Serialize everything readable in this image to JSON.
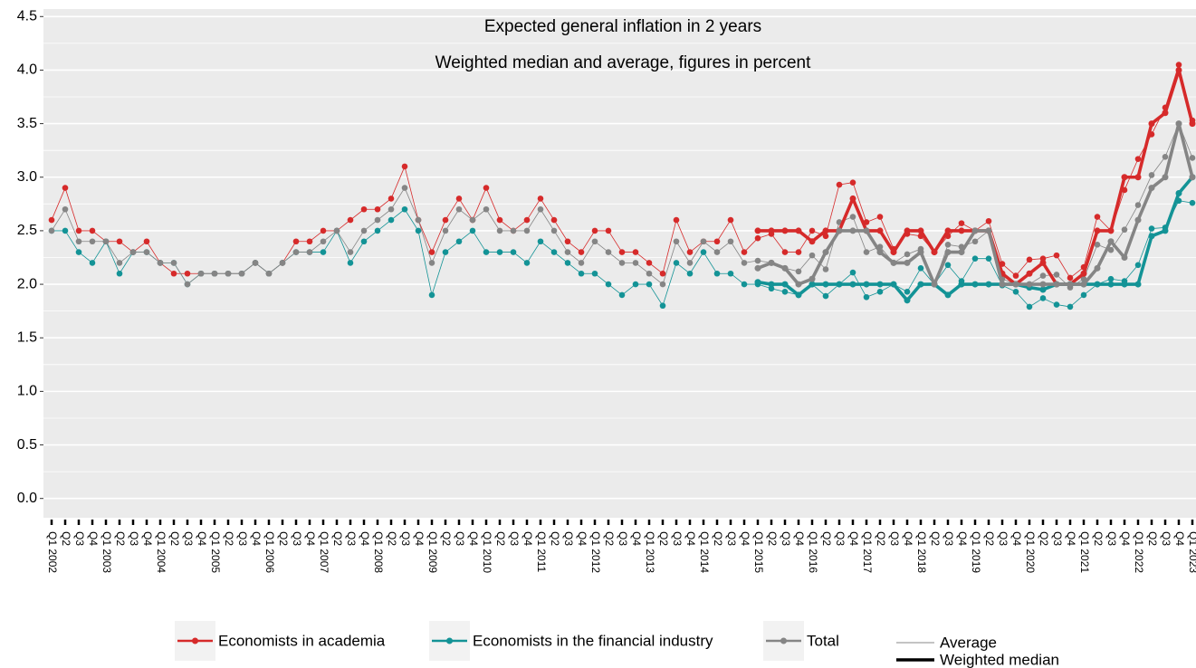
{
  "chart_data": {
    "type": "line",
    "title": "Expected general inflation in 2 years",
    "subtitle": "Weighted median and average, figures in percent",
    "categories": [
      "Q1 2002",
      "Q2",
      "Q3",
      "Q4",
      "Q1 2003",
      "Q2",
      "Q3",
      "Q4",
      "Q1 2004",
      "Q2",
      "Q3",
      "Q4",
      "Q1 2005",
      "Q2",
      "Q3",
      "Q4",
      "Q1 2006",
      "Q2",
      "Q3",
      "Q4",
      "Q1 2007",
      "Q2",
      "Q3",
      "Q4",
      "Q1 2008",
      "Q2",
      "Q3",
      "Q4",
      "Q1 2009",
      "Q2",
      "Q3",
      "Q4",
      "Q1 2010",
      "Q2",
      "Q3",
      "Q4",
      "Q1 2011",
      "Q2",
      "Q3",
      "Q4",
      "Q1 2012",
      "Q2",
      "Q3",
      "Q4",
      "Q1 2013",
      "Q2",
      "Q3",
      "Q4",
      "Q1 2014",
      "Q2",
      "Q3",
      "Q4",
      "Q1 2015",
      "Q2",
      "Q3",
      "Q4",
      "Q1 2016",
      "Q2",
      "Q3",
      "Q4",
      "Q1 2017",
      "Q2",
      "Q3",
      "Q4",
      "Q1 2018",
      "Q2",
      "Q3",
      "Q4",
      "Q1 2019",
      "Q2",
      "Q3",
      "Q4",
      "Q1 2020",
      "Q2",
      "Q3",
      "Q4",
      "Q1 2021",
      "Q2",
      "Q3",
      "Q4",
      "Q1 2022",
      "Q2",
      "Q3",
      "Q4",
      "Q1 2023"
    ],
    "series": [
      {
        "name": "Economists in academia",
        "color": "#d62a2a",
        "values": [
          2.6,
          2.9,
          2.5,
          2.5,
          2.4,
          2.4,
          2.3,
          2.4,
          2.2,
          2.1,
          2.1,
          2.1,
          2.1,
          2.1,
          2.1,
          2.2,
          2.1,
          2.2,
          2.4,
          2.4,
          2.5,
          2.5,
          2.6,
          2.7,
          2.7,
          2.8,
          3.1,
          2.6,
          2.3,
          2.6,
          2.8,
          2.6,
          2.9,
          2.6,
          2.5,
          2.6,
          2.8,
          2.6,
          2.4,
          2.3,
          2.5,
          2.5,
          2.3,
          2.3,
          2.2,
          2.1,
          2.6,
          2.3,
          2.4,
          2.4,
          2.6,
          2.3,
          2.43,
          2.47,
          2.3,
          2.3,
          2.5,
          2.45,
          2.93,
          2.95,
          2.58,
          2.63,
          2.33,
          2.47,
          2.45,
          2.3,
          2.45,
          2.57,
          2.5,
          2.59,
          2.19,
          2.08,
          2.23,
          2.24,
          2.27,
          2.06,
          2.16,
          2.63,
          2.5,
          2.88,
          3.17,
          3.4,
          3.65,
          4.05,
          3.53
        ],
        "median": [
          null,
          null,
          null,
          null,
          null,
          null,
          null,
          null,
          null,
          null,
          null,
          null,
          null,
          null,
          null,
          null,
          null,
          null,
          null,
          null,
          null,
          null,
          null,
          null,
          null,
          null,
          null,
          null,
          null,
          null,
          null,
          null,
          null,
          null,
          null,
          null,
          null,
          null,
          null,
          null,
          null,
          null,
          null,
          null,
          null,
          null,
          null,
          null,
          null,
          null,
          null,
          null,
          2.5,
          2.5,
          2.5,
          2.5,
          2.4,
          2.5,
          2.5,
          2.8,
          2.5,
          2.5,
          2.3,
          2.5,
          2.5,
          2.3,
          2.5,
          2.5,
          2.5,
          2.5,
          2.1,
          2.0,
          2.1,
          2.2,
          2.0,
          2.0,
          2.1,
          2.5,
          2.5,
          3.0,
          3.0,
          3.5,
          3.6,
          4.0,
          3.5
        ]
      },
      {
        "name": "Economists in the financial industry",
        "color": "#139396",
        "values": [
          2.5,
          2.5,
          2.3,
          2.2,
          2.4,
          2.1,
          2.3,
          2.3,
          2.2,
          2.2,
          2.0,
          2.1,
          2.1,
          2.1,
          2.1,
          2.2,
          2.1,
          2.2,
          2.3,
          2.3,
          2.3,
          2.5,
          2.2,
          2.4,
          2.5,
          2.6,
          2.7,
          2.5,
          1.9,
          2.3,
          2.4,
          2.5,
          2.3,
          2.3,
          2.3,
          2.2,
          2.4,
          2.3,
          2.2,
          2.1,
          2.1,
          2.0,
          1.9,
          2.0,
          2.0,
          1.8,
          2.2,
          2.1,
          2.3,
          2.1,
          2.1,
          2.0,
          2.0,
          1.96,
          1.93,
          1.9,
          2.0,
          1.89,
          2.0,
          2.11,
          1.88,
          1.93,
          2.0,
          1.93,
          2.15,
          2.0,
          2.18,
          2.03,
          2.24,
          2.24,
          1.99,
          1.93,
          1.79,
          1.87,
          1.81,
          1.79,
          1.9,
          2.0,
          2.05,
          2.03,
          2.18,
          2.52,
          2.53,
          2.78,
          2.76
        ],
        "median": [
          null,
          null,
          null,
          null,
          null,
          null,
          null,
          null,
          null,
          null,
          null,
          null,
          null,
          null,
          null,
          null,
          null,
          null,
          null,
          null,
          null,
          null,
          null,
          null,
          null,
          null,
          null,
          null,
          null,
          null,
          null,
          null,
          null,
          null,
          null,
          null,
          null,
          null,
          null,
          null,
          null,
          null,
          null,
          null,
          null,
          null,
          null,
          null,
          null,
          null,
          null,
          null,
          2.02,
          2.0,
          2.0,
          1.9,
          2.0,
          2.0,
          2.0,
          2.0,
          2.0,
          2.0,
          2.0,
          1.85,
          2.0,
          2.0,
          1.9,
          2.0,
          2.0,
          2.0,
          2.0,
          2.0,
          1.97,
          1.95,
          2.0,
          2.0,
          2.0,
          2.0,
          2.0,
          2.0,
          2.0,
          2.45,
          2.5,
          2.85,
          3.0
        ]
      },
      {
        "name": "Total",
        "color": "#858585",
        "values": [
          2.5,
          2.7,
          2.4,
          2.4,
          2.4,
          2.2,
          2.3,
          2.3,
          2.2,
          2.2,
          2.0,
          2.1,
          2.1,
          2.1,
          2.1,
          2.2,
          2.1,
          2.2,
          2.3,
          2.3,
          2.4,
          2.5,
          2.3,
          2.5,
          2.6,
          2.7,
          2.9,
          2.6,
          2.2,
          2.5,
          2.7,
          2.6,
          2.7,
          2.5,
          2.5,
          2.5,
          2.7,
          2.5,
          2.3,
          2.2,
          2.4,
          2.3,
          2.2,
          2.2,
          2.1,
          2.0,
          2.4,
          2.2,
          2.4,
          2.3,
          2.4,
          2.2,
          2.22,
          2.2,
          2.15,
          2.12,
          2.27,
          2.14,
          2.58,
          2.63,
          2.3,
          2.35,
          2.2,
          2.28,
          2.33,
          2.0,
          2.37,
          2.35,
          2.4,
          2.5,
          2.05,
          2.0,
          2.0,
          2.08,
          2.09,
          1.97,
          2.05,
          2.37,
          2.32,
          2.51,
          2.74,
          3.02,
          3.19,
          3.5,
          3.18
        ],
        "median": [
          null,
          null,
          null,
          null,
          null,
          null,
          null,
          null,
          null,
          null,
          null,
          null,
          null,
          null,
          null,
          null,
          null,
          null,
          null,
          null,
          null,
          null,
          null,
          null,
          null,
          null,
          null,
          null,
          null,
          null,
          null,
          null,
          null,
          null,
          null,
          null,
          null,
          null,
          null,
          null,
          null,
          null,
          null,
          null,
          null,
          null,
          null,
          null,
          null,
          null,
          null,
          null,
          2.15,
          2.2,
          2.15,
          2.0,
          2.05,
          2.3,
          2.5,
          2.5,
          2.5,
          2.3,
          2.2,
          2.2,
          2.3,
          2.0,
          2.3,
          2.3,
          2.5,
          2.5,
          2.0,
          2.0,
          2.0,
          2.0,
          2.0,
          2.0,
          2.0,
          2.15,
          2.4,
          2.25,
          2.6,
          2.9,
          3.0,
          3.5,
          3.0
        ]
      }
    ],
    "line_types": [
      "Average",
      "Weighted median"
    ],
    "ylim": [
      -0.18,
      4.57
    ],
    "yticks": [
      {
        "value": 0,
        "label": "0.0"
      },
      0.5,
      {
        "value": 1,
        "label": "1.0"
      },
      1.5,
      {
        "value": 2,
        "label": "2.0"
      },
      2.5,
      {
        "value": 3,
        "label": "3.0"
      },
      3.5,
      {
        "value": 4,
        "label": "4.0"
      },
      4.5
    ],
    "grid": true,
    "minor_grid": true,
    "legend": "bottom"
  }
}
